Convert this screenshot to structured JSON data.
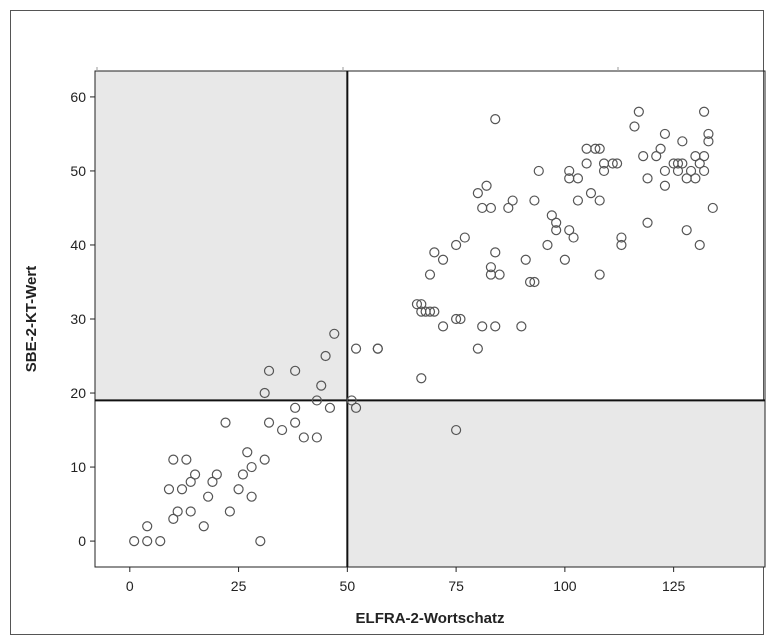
{
  "chart_data": {
    "type": "scatter",
    "xlabel": "ELFRA-2-Wortschatz",
    "ylabel": "SBE-2-KT-Wert",
    "xlim": [
      -8,
      146
    ],
    "ylim": [
      -3.5,
      63.5
    ],
    "xticks": [
      0,
      25,
      50,
      75,
      100,
      125
    ],
    "yticks": [
      0,
      10,
      20,
      30,
      40,
      50,
      60
    ],
    "grid": false,
    "reference_lines": {
      "x": 50,
      "y": 19
    },
    "shaded_quadrants": [
      "top-left",
      "bottom-right"
    ],
    "colors": {
      "shade": "#e8e8e8",
      "marker": "#555555",
      "line": "#111111"
    },
    "points": [
      {
        "x": 1,
        "y": 0
      },
      {
        "x": 4,
        "y": 0
      },
      {
        "x": 7,
        "y": 0
      },
      {
        "x": 4,
        "y": 2
      },
      {
        "x": 10,
        "y": 3
      },
      {
        "x": 11,
        "y": 4
      },
      {
        "x": 14,
        "y": 4
      },
      {
        "x": 17,
        "y": 2
      },
      {
        "x": 23,
        "y": 4
      },
      {
        "x": 30,
        "y": 0
      },
      {
        "x": 9,
        "y": 7
      },
      {
        "x": 12,
        "y": 7
      },
      {
        "x": 14,
        "y": 8
      },
      {
        "x": 15,
        "y": 9
      },
      {
        "x": 10,
        "y": 11
      },
      {
        "x": 13,
        "y": 11
      },
      {
        "x": 18,
        "y": 6
      },
      {
        "x": 19,
        "y": 8
      },
      {
        "x": 20,
        "y": 9
      },
      {
        "x": 25,
        "y": 7
      },
      {
        "x": 26,
        "y": 9
      },
      {
        "x": 28,
        "y": 10
      },
      {
        "x": 28,
        "y": 6
      },
      {
        "x": 27,
        "y": 12
      },
      {
        "x": 31,
        "y": 11
      },
      {
        "x": 22,
        "y": 16
      },
      {
        "x": 32,
        "y": 16
      },
      {
        "x": 35,
        "y": 15
      },
      {
        "x": 38,
        "y": 16
      },
      {
        "x": 40,
        "y": 14
      },
      {
        "x": 43,
        "y": 14
      },
      {
        "x": 38,
        "y": 18
      },
      {
        "x": 31,
        "y": 20
      },
      {
        "x": 32,
        "y": 23
      },
      {
        "x": 38,
        "y": 23
      },
      {
        "x": 43,
        "y": 19
      },
      {
        "x": 44,
        "y": 21
      },
      {
        "x": 46,
        "y": 18
      },
      {
        "x": 45,
        "y": 25
      },
      {
        "x": 47,
        "y": 28
      },
      {
        "x": 51,
        "y": 19
      },
      {
        "x": 52,
        "y": 18
      },
      {
        "x": 52,
        "y": 26
      },
      {
        "x": 57,
        "y": 26
      },
      {
        "x": 57,
        "y": 26
      },
      {
        "x": 67,
        "y": 22
      },
      {
        "x": 66,
        "y": 32
      },
      {
        "x": 67,
        "y": 32
      },
      {
        "x": 67,
        "y": 31
      },
      {
        "x": 68,
        "y": 31
      },
      {
        "x": 69,
        "y": 31
      },
      {
        "x": 70,
        "y": 31
      },
      {
        "x": 69,
        "y": 36
      },
      {
        "x": 70,
        "y": 39
      },
      {
        "x": 72,
        "y": 38
      },
      {
        "x": 72,
        "y": 29
      },
      {
        "x": 75,
        "y": 30
      },
      {
        "x": 76,
        "y": 30
      },
      {
        "x": 75,
        "y": 40
      },
      {
        "x": 77,
        "y": 41
      },
      {
        "x": 75,
        "y": 15
      },
      {
        "x": 80,
        "y": 26
      },
      {
        "x": 81,
        "y": 29
      },
      {
        "x": 80,
        "y": 47
      },
      {
        "x": 81,
        "y": 45
      },
      {
        "x": 82,
        "y": 48
      },
      {
        "x": 83,
        "y": 45
      },
      {
        "x": 83,
        "y": 37
      },
      {
        "x": 83,
        "y": 36
      },
      {
        "x": 84,
        "y": 39
      },
      {
        "x": 85,
        "y": 36
      },
      {
        "x": 84,
        "y": 29
      },
      {
        "x": 84,
        "y": 57
      },
      {
        "x": 87,
        "y": 45
      },
      {
        "x": 88,
        "y": 46
      },
      {
        "x": 90,
        "y": 29
      },
      {
        "x": 91,
        "y": 38
      },
      {
        "x": 92,
        "y": 35
      },
      {
        "x": 93,
        "y": 35
      },
      {
        "x": 93,
        "y": 46
      },
      {
        "x": 94,
        "y": 50
      },
      {
        "x": 96,
        "y": 40
      },
      {
        "x": 97,
        "y": 44
      },
      {
        "x": 98,
        "y": 43
      },
      {
        "x": 98,
        "y": 42
      },
      {
        "x": 100,
        "y": 38
      },
      {
        "x": 101,
        "y": 42
      },
      {
        "x": 102,
        "y": 41
      },
      {
        "x": 101,
        "y": 49
      },
      {
        "x": 101,
        "y": 50
      },
      {
        "x": 103,
        "y": 46
      },
      {
        "x": 103,
        "y": 49
      },
      {
        "x": 105,
        "y": 51
      },
      {
        "x": 105,
        "y": 53
      },
      {
        "x": 106,
        "y": 47
      },
      {
        "x": 107,
        "y": 53
      },
      {
        "x": 108,
        "y": 53
      },
      {
        "x": 108,
        "y": 46
      },
      {
        "x": 108,
        "y": 36
      },
      {
        "x": 109,
        "y": 50
      },
      {
        "x": 109,
        "y": 51
      },
      {
        "x": 111,
        "y": 51
      },
      {
        "x": 112,
        "y": 51
      },
      {
        "x": 113,
        "y": 41
      },
      {
        "x": 113,
        "y": 40
      },
      {
        "x": 116,
        "y": 56
      },
      {
        "x": 117,
        "y": 58
      },
      {
        "x": 118,
        "y": 52
      },
      {
        "x": 119,
        "y": 49
      },
      {
        "x": 119,
        "y": 43
      },
      {
        "x": 121,
        "y": 52
      },
      {
        "x": 122,
        "y": 53
      },
      {
        "x": 123,
        "y": 55
      },
      {
        "x": 123,
        "y": 50
      },
      {
        "x": 123,
        "y": 48
      },
      {
        "x": 125,
        "y": 51
      },
      {
        "x": 126,
        "y": 51
      },
      {
        "x": 126,
        "y": 50
      },
      {
        "x": 127,
        "y": 51
      },
      {
        "x": 127,
        "y": 54
      },
      {
        "x": 128,
        "y": 49
      },
      {
        "x": 128,
        "y": 42
      },
      {
        "x": 129,
        "y": 50
      },
      {
        "x": 130,
        "y": 52
      },
      {
        "x": 130,
        "y": 49
      },
      {
        "x": 131,
        "y": 51
      },
      {
        "x": 131,
        "y": 40
      },
      {
        "x": 132,
        "y": 58
      },
      {
        "x": 132,
        "y": 52
      },
      {
        "x": 132,
        "y": 50
      },
      {
        "x": 133,
        "y": 54
      },
      {
        "x": 133,
        "y": 55
      },
      {
        "x": 134,
        "y": 45
      }
    ]
  }
}
